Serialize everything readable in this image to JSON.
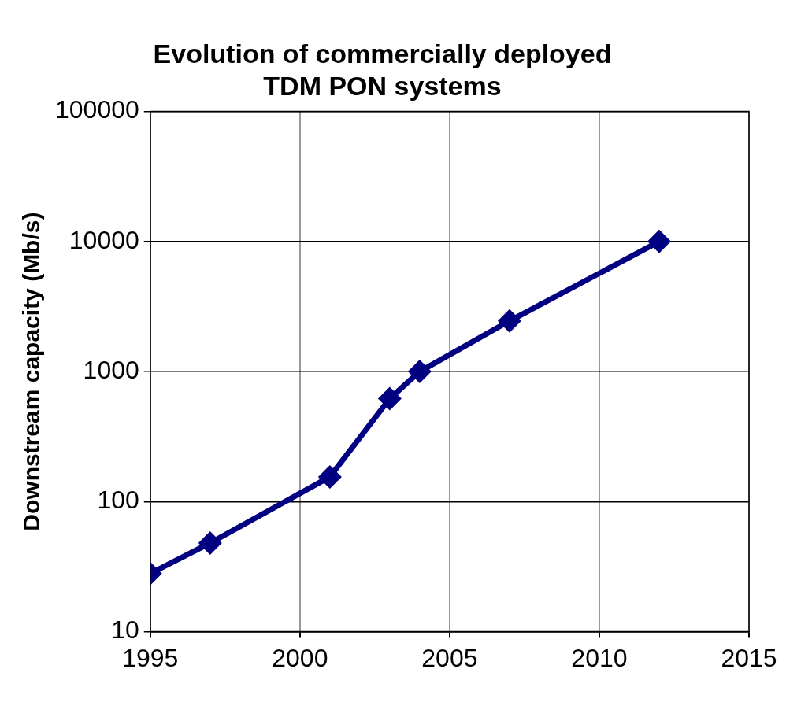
{
  "chart_data": {
    "type": "line",
    "title": "Evolution of commercially deployed\nTDM PON systems",
    "ylabel": "Downstream capacity (Mb/s)",
    "x": [
      1995,
      1997,
      2001,
      2003,
      2004,
      2007,
      2012
    ],
    "series": [
      {
        "color": "#000080",
        "values": [
          28,
          48,
          155,
          620,
          1000,
          2450,
          10000
        ]
      }
    ],
    "xlim": [
      1995,
      2015
    ],
    "xticks": [
      1995,
      2000,
      2005,
      2010,
      2015
    ],
    "ylim": [
      10,
      100000
    ],
    "yticks": [
      10,
      100,
      1000,
      10000,
      100000
    ],
    "log": "y",
    "grid": true,
    "legend": false,
    "marker": "diamond",
    "line_style": "solid"
  }
}
